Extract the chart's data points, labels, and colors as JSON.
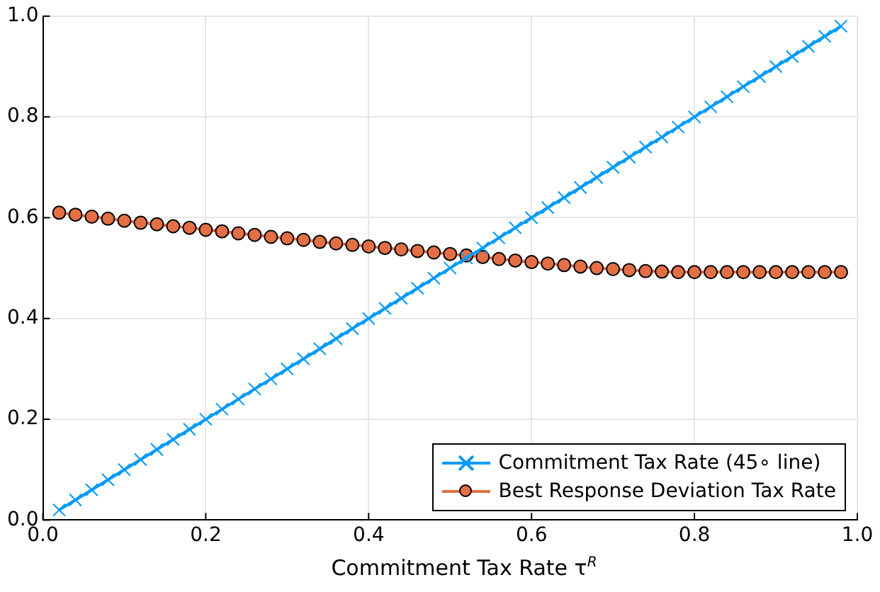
{
  "chart_data": {
    "type": "line",
    "xlabel": "Commitment Tax Rate τ$^{R}$",
    "x": [
      0.02,
      0.04,
      0.06,
      0.08,
      0.1,
      0.12,
      0.14,
      0.16,
      0.18,
      0.2,
      0.22,
      0.24,
      0.26,
      0.28,
      0.3,
      0.32,
      0.34,
      0.36,
      0.38,
      0.4,
      0.42,
      0.44,
      0.46,
      0.48,
      0.5,
      0.52,
      0.54,
      0.56,
      0.58,
      0.6,
      0.62,
      0.64,
      0.66,
      0.68,
      0.7,
      0.72,
      0.74,
      0.76,
      0.78,
      0.8,
      0.82,
      0.84,
      0.86,
      0.88,
      0.9,
      0.92,
      0.94,
      0.96,
      0.98
    ],
    "series": [
      {
        "name": "Commitment Tax Rate (45∘ line)",
        "color": "#009af9",
        "marker": "cross",
        "values": [
          0.02,
          0.04,
          0.06,
          0.08,
          0.1,
          0.12,
          0.14,
          0.16,
          0.18,
          0.2,
          0.22,
          0.24,
          0.26,
          0.28,
          0.3,
          0.32,
          0.34,
          0.36,
          0.38,
          0.4,
          0.42,
          0.44,
          0.46,
          0.48,
          0.5,
          0.52,
          0.54,
          0.56,
          0.58,
          0.6,
          0.62,
          0.64,
          0.66,
          0.68,
          0.7,
          0.72,
          0.74,
          0.76,
          0.78,
          0.8,
          0.82,
          0.84,
          0.86,
          0.88,
          0.9,
          0.92,
          0.94,
          0.96,
          0.98
        ]
      },
      {
        "name": "Best Response Deviation Tax Rate",
        "color": "#e26f46",
        "marker": "circle",
        "values": [
          0.61,
          0.606,
          0.602,
          0.598,
          0.594,
          0.59,
          0.587,
          0.583,
          0.58,
          0.576,
          0.573,
          0.569,
          0.566,
          0.562,
          0.559,
          0.556,
          0.552,
          0.549,
          0.546,
          0.543,
          0.54,
          0.537,
          0.534,
          0.531,
          0.528,
          0.525,
          0.522,
          0.518,
          0.515,
          0.512,
          0.509,
          0.506,
          0.503,
          0.5,
          0.498,
          0.496,
          0.494,
          0.493,
          0.492,
          0.492,
          0.492,
          0.492,
          0.492,
          0.492,
          0.492,
          0.492,
          0.492,
          0.492,
          0.492
        ]
      }
    ],
    "xlim": [
      0,
      1
    ],
    "ylim": [
      0,
      1
    ],
    "xticks": [
      {
        "value": 0,
        "label": "0.0"
      },
      0.2,
      0.4,
      0.6,
      0.8,
      {
        "value": 1,
        "label": "1.0"
      }
    ],
    "yticks": [
      {
        "value": 0,
        "label": "0.0"
      },
      0.2,
      0.4,
      0.6,
      0.8,
      {
        "value": 1,
        "label": "1.0"
      }
    ],
    "grid": true,
    "legend": "bottom right",
    "line_style": "solid"
  }
}
